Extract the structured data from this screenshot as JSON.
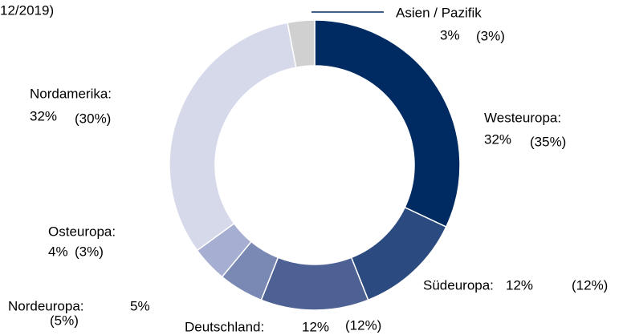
{
  "chart_data": {
    "type": "donut",
    "subtitle": "12/2019)",
    "categories": [
      "Westeuropa:",
      "Südeuropa:",
      "Deutschland:",
      "Nordeuropa:",
      "Osteuropa:",
      "Nordamerika:",
      "Asien / Pazifik"
    ],
    "values": [
      32,
      12,
      12,
      5,
      4,
      32,
      3
    ],
    "value_labels": [
      "32%",
      "12%",
      "12%",
      "5%",
      "4%",
      "32%",
      "3%"
    ],
    "previous_values": [
      35,
      12,
      12,
      5,
      3,
      30,
      3
    ],
    "previous_value_labels": [
      "(35%)",
      "(12%)",
      "(12%)",
      "(5%)",
      "(3%)",
      "(30%)",
      "(3%)"
    ],
    "colors": [
      "#002b62",
      "#2b4a80",
      "#4e6194",
      "#7a88b4",
      "#a6afd1",
      "#d5d9ea",
      "#d0d0d0"
    ]
  }
}
